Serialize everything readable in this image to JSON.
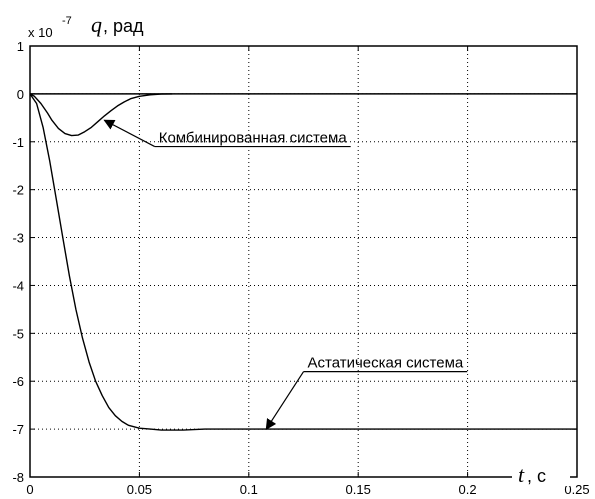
{
  "chart_data": {
    "type": "line",
    "title": "",
    "xlabel": {
      "symbol": "t",
      "unit": ", c"
    },
    "ylabel": {
      "symbol": "q",
      "unit": ", рад"
    },
    "y_multiplier": {
      "base": "x 10",
      "exponent": "-7"
    },
    "xlim": [
      0,
      0.25
    ],
    "ylim": [
      -8,
      1
    ],
    "x_ticks": [
      0,
      0.05,
      0.1,
      0.15,
      0.2,
      0.25
    ],
    "x_tick_labels": [
      "0",
      "0.05",
      "0.1",
      "0.15",
      "0.2",
      "0.25"
    ],
    "y_ticks": [
      1,
      0,
      -1,
      -2,
      -3,
      -4,
      -5,
      -6,
      -7,
      -8
    ],
    "y_tick_labels": [
      "1",
      "0",
      "-1",
      "-2",
      "-3",
      "-4",
      "-5",
      "-6",
      "-7",
      "-8"
    ],
    "grid": true,
    "series": [
      {
        "x": [
          0,
          0.002,
          0.005,
          0.008,
          0.01,
          0.013,
          0.016,
          0.019,
          0.022,
          0.025,
          0.028,
          0.031,
          0.034,
          0.037,
          0.04,
          0.043,
          0.046,
          0.05,
          0.055,
          0.06,
          0.065
        ],
        "y": [
          0,
          -0.05,
          -0.2,
          -0.4,
          -0.55,
          -0.72,
          -0.83,
          -0.87,
          -0.86,
          -0.79,
          -0.7,
          -0.58,
          -0.46,
          -0.35,
          -0.25,
          -0.17,
          -0.1,
          -0.05,
          -0.02,
          -0.005,
          0
        ]
      },
      {
        "x": [
          0,
          0.003,
          0.006,
          0.009,
          0.012,
          0.015,
          0.018,
          0.021,
          0.024,
          0.027,
          0.03,
          0.033,
          0.036,
          0.039,
          0.042,
          0.045,
          0.05,
          0.055,
          0.06,
          0.07,
          0.08,
          0.1,
          0.15,
          0.2,
          0.25
        ],
        "y": [
          0,
          -0.2,
          -0.7,
          -1.4,
          -2.2,
          -3.0,
          -3.8,
          -4.5,
          -5.1,
          -5.6,
          -6.0,
          -6.3,
          -6.55,
          -6.72,
          -6.84,
          -6.92,
          -6.98,
          -7.0,
          -7.02,
          -7.02,
          -7.0,
          -7.0,
          -7.0,
          -7.0,
          -7.0
        ]
      }
    ],
    "annotations": [
      {
        "text": "Комбинированная система",
        "point": [
          0.034,
          -0.55
        ],
        "label_anchor": [
          0.057,
          -1.1
        ]
      },
      {
        "text": "Астатическая система",
        "point": [
          0.108,
          -7.0
        ],
        "label_anchor": [
          0.125,
          -5.8
        ]
      }
    ]
  }
}
